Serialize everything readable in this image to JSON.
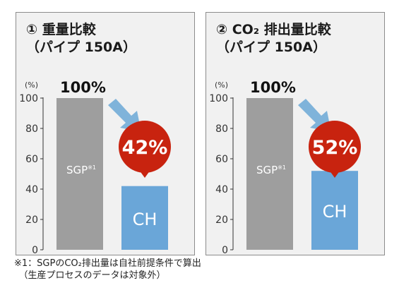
{
  "footnote": {
    "line1": "※1：SGPのCO₂排出量は自社前提条件で算出",
    "line2": "　（生産プロセスのデータは対象外）"
  },
  "colors": {
    "sgp_bar": "#9e9e9e",
    "ch_bar": "#6aa6d8",
    "badge": "#c8230f",
    "arrow": "#7fb3da",
    "panel_bg": "#f1f1f1"
  },
  "chart_data": [
    {
      "type": "bar",
      "title": "① 重量比較",
      "subtitle": "（パイプ 150A）",
      "ylabel": "(%)",
      "ylim": [
        0,
        100
      ],
      "yticks": [
        0,
        20,
        40,
        60,
        80,
        100
      ],
      "grid": false,
      "categories": [
        "SGP※1",
        "CH"
      ],
      "values": [
        100,
        42
      ],
      "value_labels": [
        "100%",
        "42%"
      ],
      "bar_colors": [
        "#9e9e9e",
        "#6aa6d8"
      ]
    },
    {
      "type": "bar",
      "title": "② CO₂ 排出量比較",
      "subtitle": "（パイプ 150A）",
      "ylabel": "(%)",
      "ylim": [
        0,
        100
      ],
      "yticks": [
        0,
        20,
        40,
        60,
        80,
        100
      ],
      "grid": false,
      "categories": [
        "SGP※1",
        "CH"
      ],
      "values": [
        100,
        52
      ],
      "value_labels": [
        "100%",
        "52%"
      ],
      "bar_colors": [
        "#9e9e9e",
        "#6aa6d8"
      ]
    }
  ]
}
